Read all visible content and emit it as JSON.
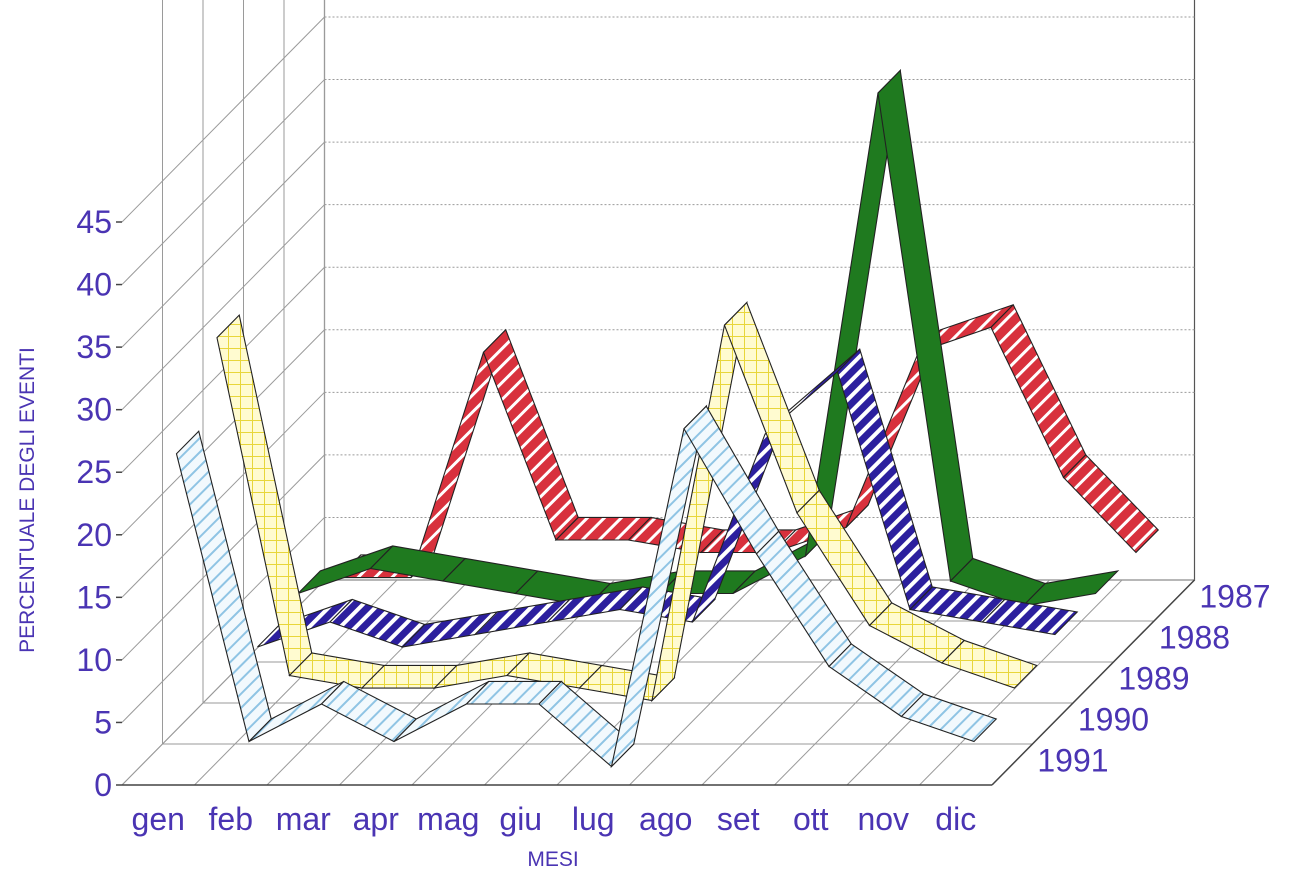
{
  "chart_data": {
    "type": "line",
    "subtype": "3d-ribbon",
    "title": "",
    "xlabel": "MESI",
    "ylabel": "PERCENTUALE DEGLI EVENTI",
    "ylim": [
      0,
      45
    ],
    "yticks": [
      0,
      5,
      10,
      15,
      20,
      25,
      30,
      35,
      40,
      45
    ],
    "categories": [
      "gen",
      "feb",
      "mar",
      "apr",
      "mag",
      "giu",
      "lug",
      "ago",
      "set",
      "ott",
      "nov",
      "dic"
    ],
    "grid": true,
    "series": [
      {
        "name": "1987",
        "color": "#d8313d",
        "pattern": "diagonal-stripes-white",
        "values": [
          2,
          2,
          20,
          5,
          5,
          4,
          4,
          6,
          20,
          22,
          10,
          4
        ]
      },
      {
        "name": "1988",
        "color": "#1f7a1f",
        "pattern": "solid",
        "values": [
          4,
          6,
          5,
          4,
          3,
          4,
          4,
          7,
          44,
          5,
          3,
          4
        ]
      },
      {
        "name": "1989",
        "color": "#2c1f9e",
        "pattern": "diagonal-stripes-white",
        "values": [
          3,
          5,
          3,
          4,
          5,
          6,
          5,
          20,
          25,
          6,
          5,
          4
        ]
      },
      {
        "name": "1990",
        "color": "#f7f36a",
        "pattern": "grid-yellow",
        "values": [
          31,
          4,
          3,
          3,
          4,
          3,
          2,
          32,
          17,
          8,
          5,
          3
        ]
      },
      {
        "name": "1991",
        "color": "#d8ecf7",
        "pattern": "diagonal-stripes-blue",
        "values": [
          25,
          2,
          5,
          2,
          5,
          5,
          0,
          27,
          17,
          8,
          4,
          2
        ]
      }
    ]
  }
}
